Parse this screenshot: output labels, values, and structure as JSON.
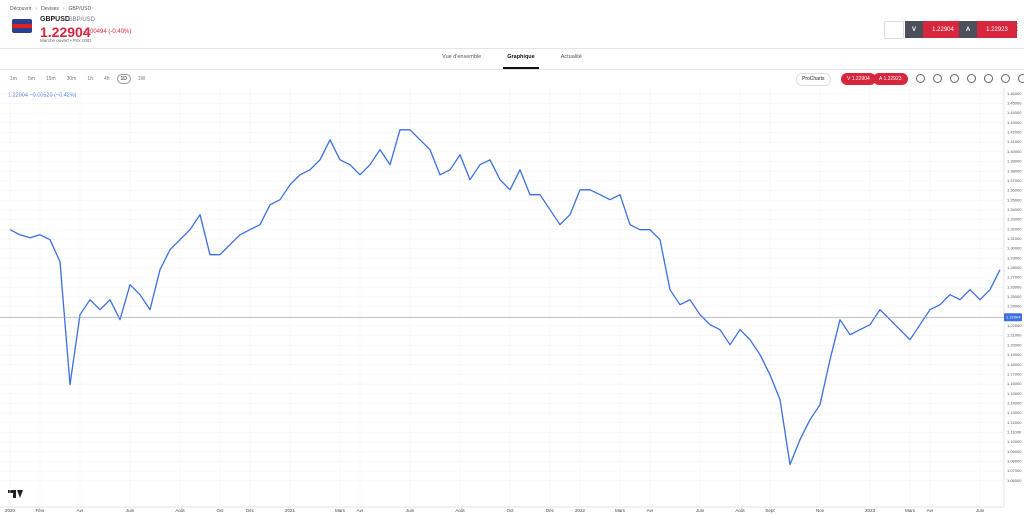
{
  "breadcrumb": [
    "Découvrir",
    "Devises",
    "GBP/USD"
  ],
  "instrument": {
    "symbol": "GBPUSD",
    "name": "GBP/USD",
    "price": "1.22904",
    "change": "-0.00494 (-0.40%)",
    "status": "Marché ouvert • Prix USD"
  },
  "trade": {
    "sell_label": "V",
    "sell_price": "1.22904",
    "buy_label": "A",
    "buy_price": "1.22923"
  },
  "tabs": [
    "Vue d'ensemble",
    "Graphique",
    "Actualité"
  ],
  "active_tab": 1,
  "timeframes": [
    "1m",
    "5m",
    "15m",
    "30m",
    "1h",
    "4h",
    "1D",
    "1W"
  ],
  "active_timeframe": 6,
  "chart_toolbar": {
    "procharts": "ProCharts",
    "sell": "V 1.22904",
    "buy": "A 1.22923"
  },
  "chart_data": {
    "type": "line",
    "legend_text": "1.22904 −0.00520 (−0.42%)",
    "series": [
      {
        "color": "#3b6fe0",
        "values": [
          1.3195,
          1.3143,
          1.3112,
          1.3143,
          1.3092,
          1.2865,
          1.1594,
          1.2317,
          1.2472,
          1.2369,
          1.2472,
          1.2265,
          1.2627,
          1.2524,
          1.2369,
          1.2782,
          1.2989,
          1.3092,
          1.3195,
          1.335,
          1.2937,
          1.2937,
          1.304,
          1.3143,
          1.3195,
          1.3247,
          1.3453,
          1.3505,
          1.366,
          1.3763,
          1.3815,
          1.3918,
          1.4125,
          1.3918,
          1.3867,
          1.3763,
          1.3867,
          1.4022,
          1.3867,
          1.4228,
          1.4228,
          1.4125,
          1.4022,
          1.3763,
          1.3815,
          1.397,
          1.3712,
          1.3867,
          1.3918,
          1.3712,
          1.3608,
          1.3815,
          1.3557,
          1.3557,
          1.3402,
          1.3247,
          1.335,
          1.3608,
          1.3608,
          1.3557,
          1.3505,
          1.3557,
          1.3247,
          1.3195,
          1.3195,
          1.3092,
          1.2575,
          1.242,
          1.2472,
          1.2317,
          1.2214,
          1.2162,
          1.2007,
          1.2162,
          1.2059,
          1.1904,
          1.1697,
          1.1439,
          1.0768,
          1.1026,
          1.1232,
          1.1387,
          1.1852,
          1.2265,
          1.211,
          1.2162,
          1.2214,
          1.2369,
          1.2265,
          1.2162,
          1.2059,
          1.2214,
          1.2369,
          1.242,
          1.2524,
          1.2472,
          1.2575,
          1.2472,
          1.2575,
          1.2782
        ]
      }
    ],
    "current_price": 1.22904,
    "xlim": [
      0,
      99
    ],
    "xticks": [
      {
        "value": 0,
        "label": "2020"
      },
      {
        "value": 3,
        "label": "Févr"
      },
      {
        "value": 7,
        "label": "Avr"
      },
      {
        "value": 12,
        "label": "Juin"
      },
      {
        "value": 17,
        "label": "Août"
      },
      {
        "value": 21,
        "label": "Oct"
      },
      {
        "value": 24,
        "label": "Déc"
      },
      {
        "value": 28,
        "label": "2021"
      },
      {
        "value": 33,
        "label": "Mars"
      },
      {
        "value": 35,
        "label": "Avr"
      },
      {
        "value": 40,
        "label": "Juin"
      },
      {
        "value": 45,
        "label": "Août"
      },
      {
        "value": 50,
        "label": "Oct"
      },
      {
        "value": 54,
        "label": "Déc"
      },
      {
        "value": 57,
        "label": "2022"
      },
      {
        "value": 61,
        "label": "Mars"
      },
      {
        "value": 64,
        "label": "Avr"
      },
      {
        "value": 69,
        "label": "Juin"
      },
      {
        "value": 73,
        "label": "Août"
      },
      {
        "value": 76,
        "label": "Sept"
      },
      {
        "value": 81,
        "label": "Nov"
      },
      {
        "value": 86,
        "label": "2023"
      },
      {
        "value": 90,
        "label": "Mars"
      },
      {
        "value": 92,
        "label": "Avr"
      },
      {
        "value": 97,
        "label": "Juin"
      }
    ],
    "ylim": [
      1.035,
      1.466
    ],
    "yticks": [
      {
        "value": 1.46,
        "label": "1.46000"
      },
      {
        "value": 1.45,
        "label": "1.45000"
      },
      {
        "value": 1.44,
        "label": "1.44000"
      },
      {
        "value": 1.43,
        "label": "1.43000"
      },
      {
        "value": 1.42,
        "label": "1.42000"
      },
      {
        "value": 1.41,
        "label": "1.41000"
      },
      {
        "value": 1.4,
        "label": "1.40000"
      },
      {
        "value": 1.39,
        "label": "1.39000"
      },
      {
        "value": 1.38,
        "label": "1.38000"
      },
      {
        "value": 1.37,
        "label": "1.37000"
      },
      {
        "value": 1.36,
        "label": "1.36000"
      },
      {
        "value": 1.35,
        "label": "1.35000"
      },
      {
        "value": 1.34,
        "label": "1.34000"
      },
      {
        "value": 1.33,
        "label": "1.33000"
      },
      {
        "value": 1.32,
        "label": "1.32000"
      },
      {
        "value": 1.31,
        "label": "1.31000"
      },
      {
        "value": 1.3,
        "label": "1.30000"
      },
      {
        "value": 1.29,
        "label": "1.29000"
      },
      {
        "value": 1.28,
        "label": "1.28000"
      },
      {
        "value": 1.27,
        "label": "1.27000"
      },
      {
        "value": 1.26,
        "label": "1.26000"
      },
      {
        "value": 1.25,
        "label": "1.25000"
      },
      {
        "value": 1.24,
        "label": "1.24000"
      },
      {
        "value": 1.23,
        "label": "1.23000"
      },
      {
        "value": 1.22,
        "label": "1.22000"
      },
      {
        "value": 1.21,
        "label": "1.21000"
      },
      {
        "value": 1.2,
        "label": "1.20000"
      },
      {
        "value": 1.19,
        "label": "1.19000"
      },
      {
        "value": 1.18,
        "label": "1.18000"
      },
      {
        "value": 1.17,
        "label": "1.17000"
      },
      {
        "value": 1.16,
        "label": "1.16000"
      },
      {
        "value": 1.15,
        "label": "1.15000"
      },
      {
        "value": 1.14,
        "label": "1.14000"
      },
      {
        "value": 1.13,
        "label": "1.13000"
      },
      {
        "value": 1.12,
        "label": "1.12000"
      },
      {
        "value": 1.11,
        "label": "1.11000"
      },
      {
        "value": 1.1,
        "label": "1.10000"
      },
      {
        "value": 1.09,
        "label": "1.09000"
      },
      {
        "value": 1.08,
        "label": "1.08000"
      },
      {
        "value": 1.07,
        "label": "1.07000"
      },
      {
        "value": 1.06,
        "label": "1.06000"
      }
    ],
    "grid": true
  }
}
